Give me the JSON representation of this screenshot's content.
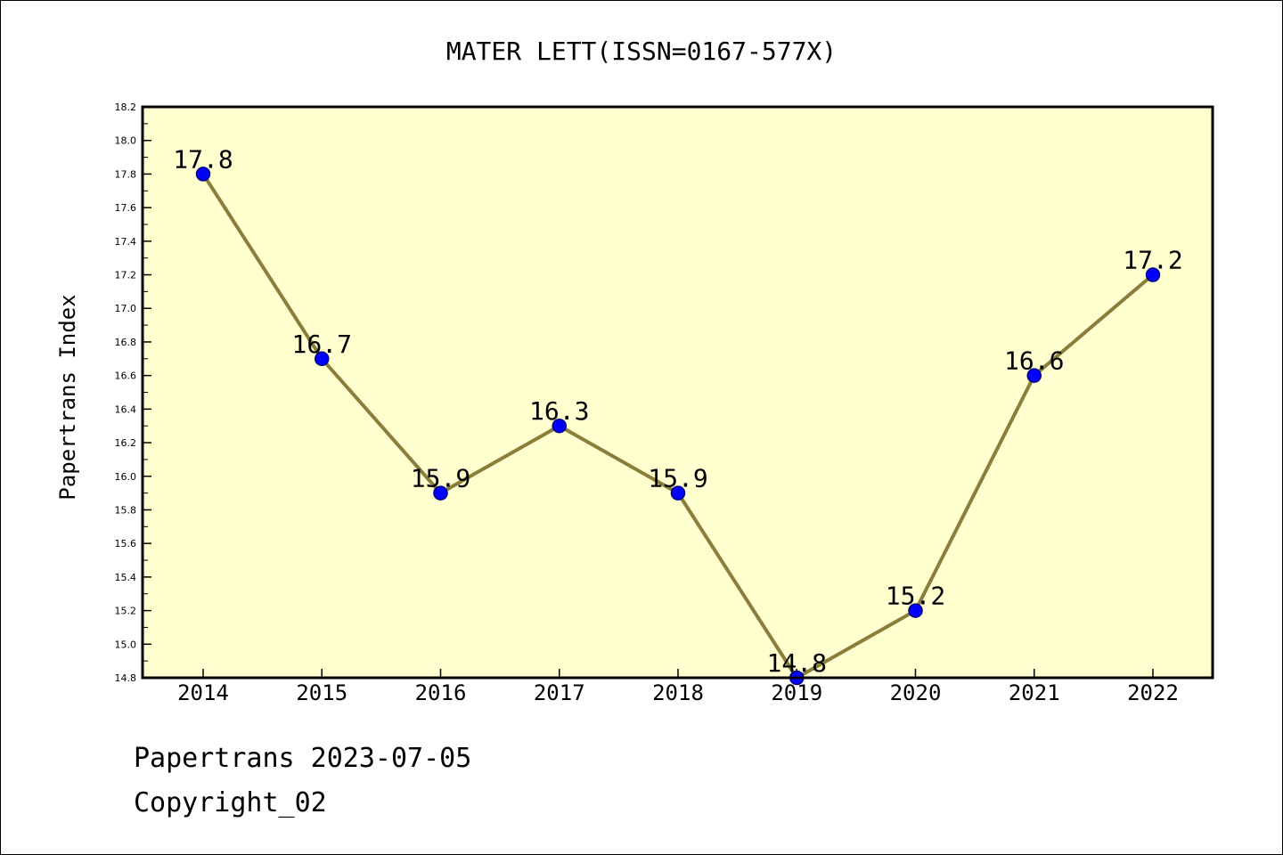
{
  "chart_data": {
    "type": "line",
    "title": "MATER LETT(ISSN=0167-577X)",
    "xlabel": "",
    "ylabel": "Papertrans Index",
    "categories": [
      "2014",
      "2015",
      "2016",
      "2017",
      "2018",
      "2019",
      "2020",
      "2021",
      "2022"
    ],
    "series": [
      {
        "values": [
          17.8,
          16.7,
          15.9,
          16.3,
          15.9,
          14.8,
          15.2,
          16.6,
          17.2
        ],
        "data_labels": [
          "17.8",
          "16.7",
          "15.9",
          "16.3",
          "15.9",
          "14.8",
          "15.2",
          "16.6",
          "17.2"
        ]
      }
    ],
    "ylim": [
      14.8,
      18.2
    ],
    "yticks": [
      "14.8",
      "15.0",
      "15.2",
      "15.4",
      "15.6",
      "15.8",
      "16.0",
      "16.2",
      "16.4",
      "16.6",
      "16.8",
      "17.0",
      "17.2",
      "17.4",
      "17.6",
      "17.8",
      "18.0",
      "18.2"
    ],
    "grid": false,
    "legend": "none",
    "colors": {
      "plot_background": "#ffffd0",
      "line": "#8b7d3a",
      "marker_fill": "#0000ff",
      "marker_edge": "#000080"
    }
  },
  "footer": {
    "date_line": "Papertrans 2023-07-05",
    "copyright_line": "Copyright_02"
  }
}
